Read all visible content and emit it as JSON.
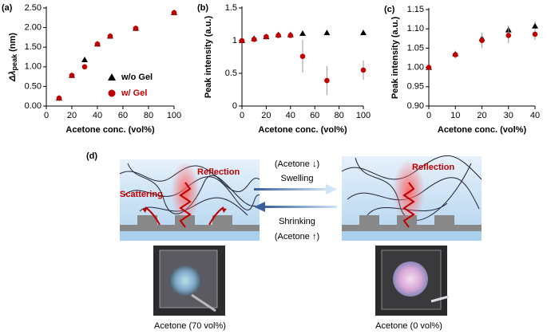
{
  "chart_data": [
    {
      "type": "scatter",
      "panel": "(a)",
      "ylabel": {
        "main": "Δλ",
        "sub": "peak",
        "unit": " (nm)"
      },
      "xlabel": "Acetone conc. (vol%)",
      "x": [
        10,
        20,
        30,
        40,
        50,
        70,
        100
      ],
      "xlim": [
        0,
        100
      ],
      "xticks": [
        0,
        20,
        40,
        60,
        80,
        100
      ],
      "ylim": [
        0,
        2.5
      ],
      "yticks": [
        {
          "value": 0,
          "label": "0.00"
        },
        {
          "value": 0.5,
          "label": "0.50"
        },
        {
          "value": 1,
          "label": "1.00"
        },
        {
          "value": 1.5,
          "label": "1.50"
        },
        {
          "value": 2,
          "label": "2.00"
        },
        {
          "value": 2.5,
          "label": "2.50"
        }
      ],
      "legend": true,
      "series": [
        {
          "name": "w/o Gel",
          "color": "#000000",
          "marker": "triangle",
          "values": [
            0.2,
            0.78,
            1.18,
            1.58,
            1.78,
            1.98,
            2.38
          ]
        },
        {
          "name": "w/   Gel",
          "color": "#c00000",
          "marker": "circle",
          "values": [
            0.2,
            0.78,
            1.0,
            1.58,
            1.78,
            1.98,
            2.38
          ]
        }
      ]
    },
    {
      "type": "scatter",
      "panel": "(b)",
      "ylabel": "Peak intensity (a.u.)",
      "xlabel": "Acetone conc. (vol%)",
      "x": [
        0,
        10,
        20,
        30,
        40,
        50,
        70,
        100
      ],
      "xlim": [
        0,
        100
      ],
      "xticks": [
        0,
        20,
        40,
        60,
        80,
        100
      ],
      "ylim": [
        0,
        1.5
      ],
      "yticks": [
        0,
        0.5,
        1,
        1.5
      ],
      "legend": false,
      "series": [
        {
          "name": "w/o Gel",
          "color": "#000000",
          "marker": "triangle",
          "values": [
            1.0,
            1.03,
            1.06,
            1.09,
            1.09,
            1.11,
            1.12,
            1.12
          ],
          "errors": [
            0,
            0.01,
            0.01,
            0.01,
            0.01,
            0.01,
            0.01,
            0.01
          ]
        },
        {
          "name": "w/   Gel",
          "color": "#c00000",
          "marker": "circle",
          "values": [
            1.0,
            1.02,
            1.06,
            1.08,
            1.08,
            0.76,
            0.39,
            0.55
          ],
          "errors": [
            0,
            0.01,
            0.01,
            0.02,
            0.02,
            0.25,
            0.22,
            0.15
          ]
        }
      ]
    },
    {
      "type": "scatter",
      "panel": "(c)",
      "ylabel": "Peak intensity (a.u.)",
      "xlabel": "Acetone conc. (vol%)",
      "x": [
        0,
        10,
        20,
        30,
        40
      ],
      "xlim": [
        0,
        40
      ],
      "xticks": [
        0,
        10,
        20,
        30,
        40
      ],
      "ylim": [
        0.9,
        1.15
      ],
      "yticks": [
        {
          "value": 0.9,
          "label": "0.90"
        },
        {
          "value": 0.95,
          "label": "0.95"
        },
        {
          "value": 1,
          "label": "1.00"
        },
        {
          "value": 1.05,
          "label": "1.05"
        },
        {
          "value": 1.1,
          "label": "1.10"
        },
        {
          "value": 1.15,
          "label": "1.15"
        }
      ],
      "legend": false,
      "series": [
        {
          "name": "w/o Gel",
          "color": "#000000",
          "marker": "triangle",
          "values": [
            1.0,
            1.035,
            1.075,
            1.097,
            1.107
          ],
          "errors": [
            0,
            0.008,
            0.015,
            0.012,
            0.012
          ]
        },
        {
          "name": "w/   Gel",
          "color": "#c00000",
          "marker": "circle",
          "values": [
            1.0,
            1.033,
            1.07,
            1.083,
            1.086
          ],
          "errors": [
            0,
            0.01,
            0.02,
            0.02,
            0.015
          ]
        }
      ]
    }
  ],
  "diagram": {
    "panel": "(d)",
    "left": {
      "reflection": "Reflection",
      "scattering": "Scattering",
      "caption": "Acetone (70 vol%)"
    },
    "right": {
      "reflection": "Reflection",
      "caption": "Acetone (0 vol%)"
    },
    "forward": {
      "note": "(Acetone ↓)",
      "label": "Swelling"
    },
    "backward": {
      "label": "Shrinking",
      "note": "(Acetone ↑)"
    }
  }
}
